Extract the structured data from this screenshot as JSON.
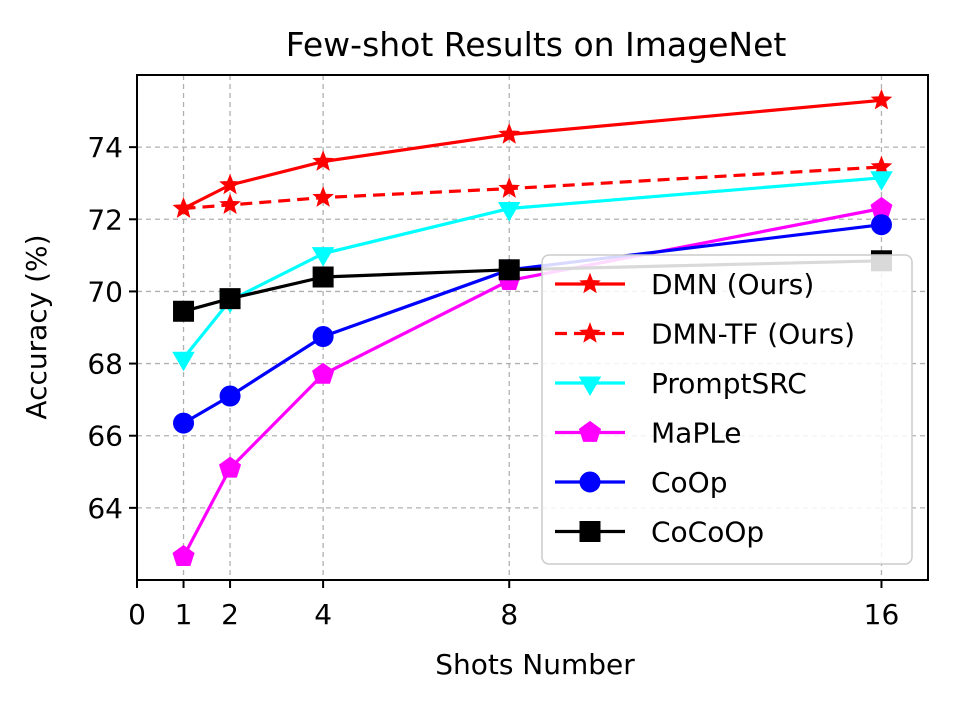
{
  "chart_data": {
    "type": "line",
    "title": "Few-shot Results on ImageNet",
    "xlabel": "Shots Number",
    "ylabel": "Accuracy (%)",
    "x": [
      1,
      2,
      4,
      8,
      16
    ],
    "xlim": [
      0,
      17
    ],
    "ylim": [
      62.0,
      76.0
    ],
    "xticks": [
      0,
      1,
      2,
      4,
      8,
      16
    ],
    "yticks": [
      64,
      66,
      68,
      70,
      72,
      74
    ],
    "grid": true,
    "legend_position": "lower-right",
    "series": [
      {
        "name": "DMN (Ours)",
        "values": [
          72.3,
          72.95,
          73.6,
          74.35,
          75.3
        ],
        "color": "#ff0000",
        "marker": "star",
        "dash": "solid"
      },
      {
        "name": "DMN-TF (Ours)",
        "values": [
          72.3,
          72.4,
          72.6,
          72.85,
          73.45
        ],
        "color": "#ff0000",
        "marker": "star",
        "dash": "dashed"
      },
      {
        "name": "PromptSRC",
        "values": [
          68.15,
          69.75,
          71.05,
          72.3,
          73.15
        ],
        "color": "#00ffff",
        "marker": "triangle-down",
        "dash": "solid"
      },
      {
        "name": "MaPLe",
        "values": [
          62.65,
          65.1,
          67.7,
          70.3,
          72.3
        ],
        "color": "#ff00ff",
        "marker": "pentagon",
        "dash": "solid"
      },
      {
        "name": "CoOp",
        "values": [
          66.35,
          67.1,
          68.75,
          70.6,
          71.85
        ],
        "color": "#0000ff",
        "marker": "circle",
        "dash": "solid"
      },
      {
        "name": "CoCoOp",
        "values": [
          69.45,
          69.8,
          70.4,
          70.6,
          70.85
        ],
        "color": "#000000",
        "marker": "square",
        "dash": "solid"
      }
    ]
  }
}
